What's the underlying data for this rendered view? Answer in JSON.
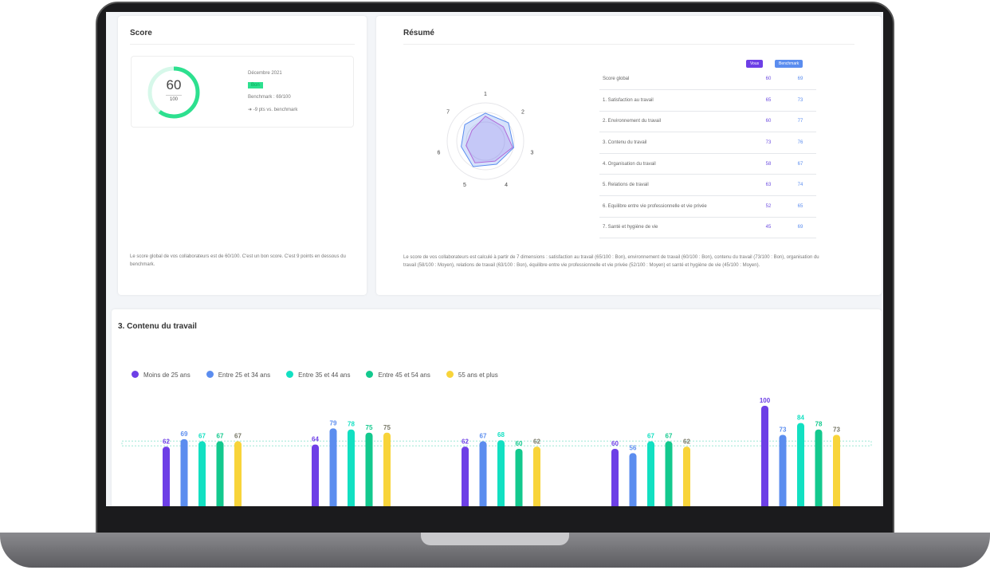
{
  "score": {
    "title": "Score",
    "value": "60",
    "max": "100",
    "percent": 60,
    "period": "Décembre 2021",
    "badge": "Bon",
    "benchmark": "Benchmark : 69/100",
    "delta": "-9 pts vs. benchmark",
    "description": "Le score global de vos collaborateurs est de 60/100. C'est un bon score. C'est 9 points en dessous du benchmark."
  },
  "resume": {
    "title": "Résumé",
    "col_vous": "Vous",
    "col_benchmark": "Benchmark",
    "rows": [
      {
        "label": "Score global",
        "vous": "60",
        "bench": "69"
      },
      {
        "label": "1. Satisfaction au travail",
        "vous": "65",
        "bench": "73"
      },
      {
        "label": "2. Environnement du travail",
        "vous": "60",
        "bench": "77"
      },
      {
        "label": "3. Contenu du travail",
        "vous": "73",
        "bench": "76"
      },
      {
        "label": "4. Organisation du travail",
        "vous": "58",
        "bench": "67"
      },
      {
        "label": "5. Relations de travail",
        "vous": "63",
        "bench": "74"
      },
      {
        "label": "6. Equilibre entre vie professionnelle et vie privée",
        "vous": "52",
        "bench": "65"
      },
      {
        "label": "7. Santé et hygiène de vie",
        "vous": "45",
        "bench": "69"
      }
    ],
    "radar_labels": [
      "1",
      "2",
      "3",
      "4",
      "5",
      "6",
      "7"
    ],
    "radar_ticks": [
      "0",
      "50",
      "80",
      "100"
    ],
    "description": "Le score de vos collaborateurs est calculé à partir de 7 dimensions : satisfaction au travail (65/100 : Bon), environnement de travail (60/100 : Bon), contenu du travail (73/100 : Bon), organisation du travail (58/100 : Moyen), relations de travail (63/100 : Bon), équilibre entre vie professionnelle et vie privée (52/100 : Moyen) et santé et hygiène de vie (45/100 : Moyen)."
  },
  "chart_data": {
    "type": "bar",
    "title": "3. Contenu du travail",
    "legend_position": "top-left",
    "series": [
      {
        "name": "Moins de 25 ans",
        "color": "#6d3fe6",
        "values": [
          62,
          64,
          62,
          60,
          100
        ]
      },
      {
        "name": "Entre 25 et 34 ans",
        "color": "#5b8def",
        "values": [
          69,
          79,
          67,
          56,
          73
        ]
      },
      {
        "name": "Entre 35 et 44 ans",
        "color": "#12e0c2",
        "values": [
          67,
          78,
          68,
          67,
          84
        ]
      },
      {
        "name": "Entre 45 et 54 ans",
        "color": "#13c98e",
        "values": [
          67,
          75,
          60,
          67,
          78
        ]
      },
      {
        "name": "55 ans et plus",
        "color": "#f8d43a",
        "values": [
          67,
          75,
          62,
          62,
          73
        ]
      }
    ],
    "reference_line": 65
  }
}
